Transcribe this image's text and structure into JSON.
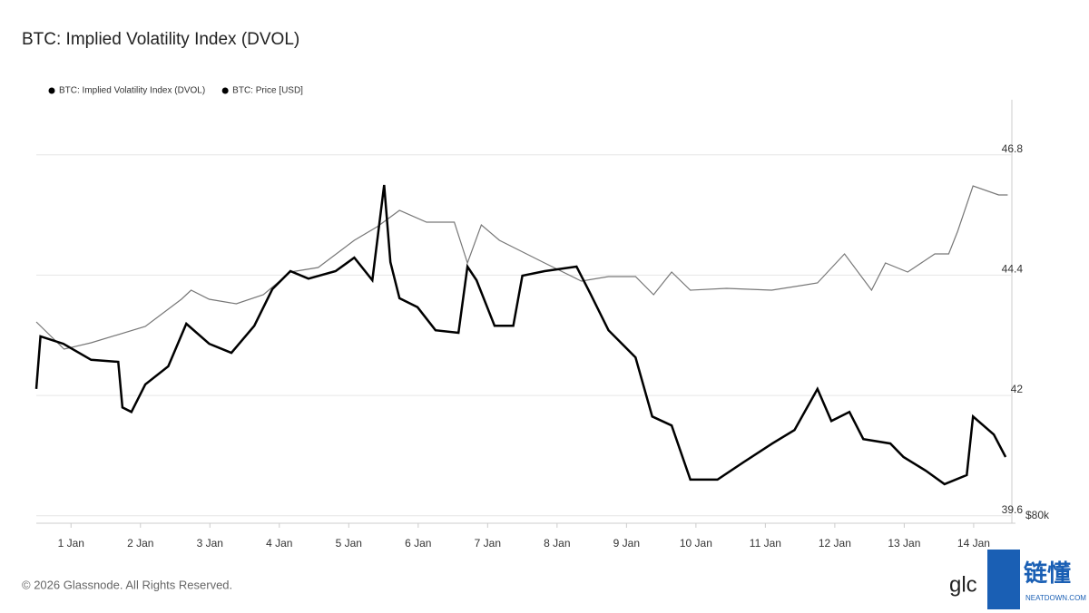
{
  "chart_data": {
    "type": "line",
    "title": "BTC: Implied Volatility Index (DVOL)",
    "footer": "© 2026 Glassnode. All Rights Reserved.",
    "watermark": "glc",
    "logo_text": "链懂",
    "logo_subtext": "NEATDOWN.COM",
    "legend": "top-left",
    "grid": true,
    "xlim": [
      0.5,
      14.55
    ],
    "xticks": [
      {
        "value": 1,
        "label": "1 Jan"
      },
      {
        "value": 2,
        "label": "2 Jan"
      },
      {
        "value": 3,
        "label": "3 Jan"
      },
      {
        "value": 4,
        "label": "4 Jan"
      },
      {
        "value": 5,
        "label": "5 Jan"
      },
      {
        "value": 6,
        "label": "6 Jan"
      },
      {
        "value": 7,
        "label": "7 Jan"
      },
      {
        "value": 8,
        "label": "8 Jan"
      },
      {
        "value": 9,
        "label": "9 Jan"
      },
      {
        "value": 10,
        "label": "10 Jan"
      },
      {
        "value": 11,
        "label": "11 Jan"
      },
      {
        "value": 12,
        "label": "12 Jan"
      },
      {
        "value": 13,
        "label": "13 Jan"
      },
      {
        "value": 14,
        "label": "14 Jan"
      }
    ],
    "ylim": [
      39.45,
      47.9
    ],
    "yticks": [
      39.6,
      42,
      44.4,
      46.8
    ],
    "y2lim": [
      80000,
      100000
    ],
    "y2ticks": [
      {
        "value": 80000,
        "label": "$80k"
      }
    ],
    "series": [
      {
        "name": "BTC: Implied Volatility Index (DVOL)",
        "color": "#000000",
        "x": [
          0.5,
          0.56,
          0.89,
          1.29,
          1.68,
          1.74,
          1.87,
          2.07,
          2.4,
          2.66,
          2.99,
          3.31,
          3.64,
          3.9,
          4.16,
          4.42,
          4.81,
          5.08,
          5.34,
          5.51,
          5.6,
          5.73,
          5.99,
          6.25,
          6.58,
          6.71,
          6.84,
          7.1,
          7.37,
          7.5,
          7.82,
          8.28,
          8.48,
          8.74,
          9.13,
          9.37,
          9.65,
          9.92,
          10.31,
          10.7,
          11.1,
          11.42,
          11.75,
          11.95,
          12.21,
          12.41,
          12.8,
          12.99,
          13.31,
          13.58,
          13.9,
          13.99,
          14.29,
          14.46
        ],
        "values": [
          42.13,
          43.18,
          43.03,
          42.71,
          42.67,
          41.76,
          41.67,
          42.22,
          42.58,
          43.43,
          43.03,
          42.85,
          43.39,
          44.12,
          44.48,
          44.33,
          44.48,
          44.75,
          44.3,
          46.2,
          44.66,
          43.94,
          43.76,
          43.3,
          43.25,
          44.57,
          44.3,
          43.39,
          43.39,
          44.39,
          44.48,
          44.57,
          44.03,
          43.3,
          42.76,
          41.58,
          41.4,
          40.32,
          40.32,
          40.68,
          41.04,
          41.31,
          42.13,
          41.49,
          41.67,
          41.13,
          41.04,
          40.77,
          40.5,
          40.23,
          40.41,
          41.58,
          41.22,
          40.77
        ]
      },
      {
        "name": "BTC: Price [USD]",
        "color": "#777777",
        "axis": "y2",
        "x": [
          0.5,
          0.9,
          1.29,
          2.07,
          2.59,
          2.73,
          2.99,
          3.38,
          3.77,
          4.16,
          4.56,
          5.08,
          5.41,
          5.73,
          6.12,
          6.52,
          6.71,
          6.91,
          7.17,
          7.43,
          7.82,
          8.35,
          8.74,
          9.13,
          9.39,
          9.65,
          9.92,
          10.44,
          11.09,
          11.75,
          12.14,
          12.53,
          12.73,
          13.05,
          13.44,
          13.64,
          13.77,
          13.99,
          14.36,
          14.49
        ],
        "values": [
          89508,
          88223,
          88523,
          89294,
          90579,
          91007,
          90579,
          90365,
          90793,
          91864,
          92078,
          93363,
          94005,
          94776,
          94220,
          94220,
          92292,
          94091,
          93363,
          92935,
          92292,
          91436,
          91650,
          91650,
          90793,
          91864,
          91007,
          91093,
          91007,
          91350,
          92721,
          91007,
          92292,
          91864,
          92721,
          92721,
          93791,
          95933,
          95504,
          95504
        ]
      }
    ]
  }
}
